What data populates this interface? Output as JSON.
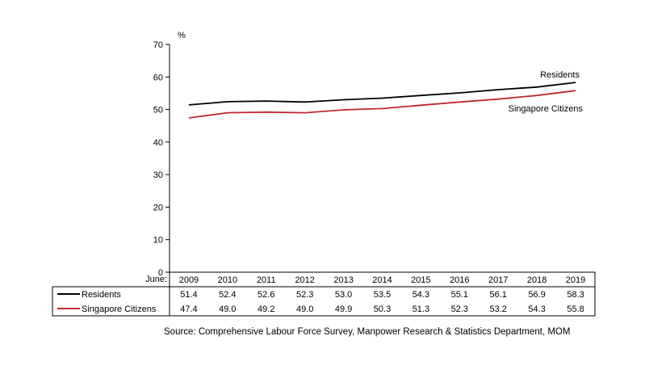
{
  "chart_data": {
    "type": "line",
    "ylabel": "%",
    "ylim": [
      0,
      70
    ],
    "yticks": [
      0,
      10,
      20,
      30,
      40,
      50,
      60,
      70
    ],
    "x_axis_label": "June:",
    "categories": [
      "2009",
      "2010",
      "2011",
      "2012",
      "2013",
      "2014",
      "2015",
      "2016",
      "2017",
      "2018",
      "2019"
    ],
    "series": [
      {
        "name": "Residents",
        "color": "#000000",
        "values": [
          51.4,
          52.4,
          52.6,
          52.3,
          53.0,
          53.5,
          54.3,
          55.1,
          56.1,
          56.9,
          58.3
        ],
        "display": [
          "51.4",
          "52.4",
          "52.6",
          "52.3",
          "53.0",
          "53.5",
          "54.3",
          "55.1",
          "56.1",
          "56.9",
          "58.3"
        ]
      },
      {
        "name": "Singapore Citizens",
        "color": "#c0272d",
        "values": [
          47.4,
          49.0,
          49.2,
          49.0,
          49.9,
          50.3,
          51.3,
          52.3,
          53.2,
          54.3,
          55.8
        ],
        "display": [
          "47.4",
          "49.0",
          "49.2",
          "49.0",
          "49.9",
          "50.3",
          "51.3",
          "52.3",
          "53.2",
          "54.3",
          "55.8"
        ]
      }
    ],
    "grid": false,
    "data_table": true
  },
  "source": "Source: Comprehensive Labour Force Survey, Manpower Research & Statistics Department, MOM"
}
